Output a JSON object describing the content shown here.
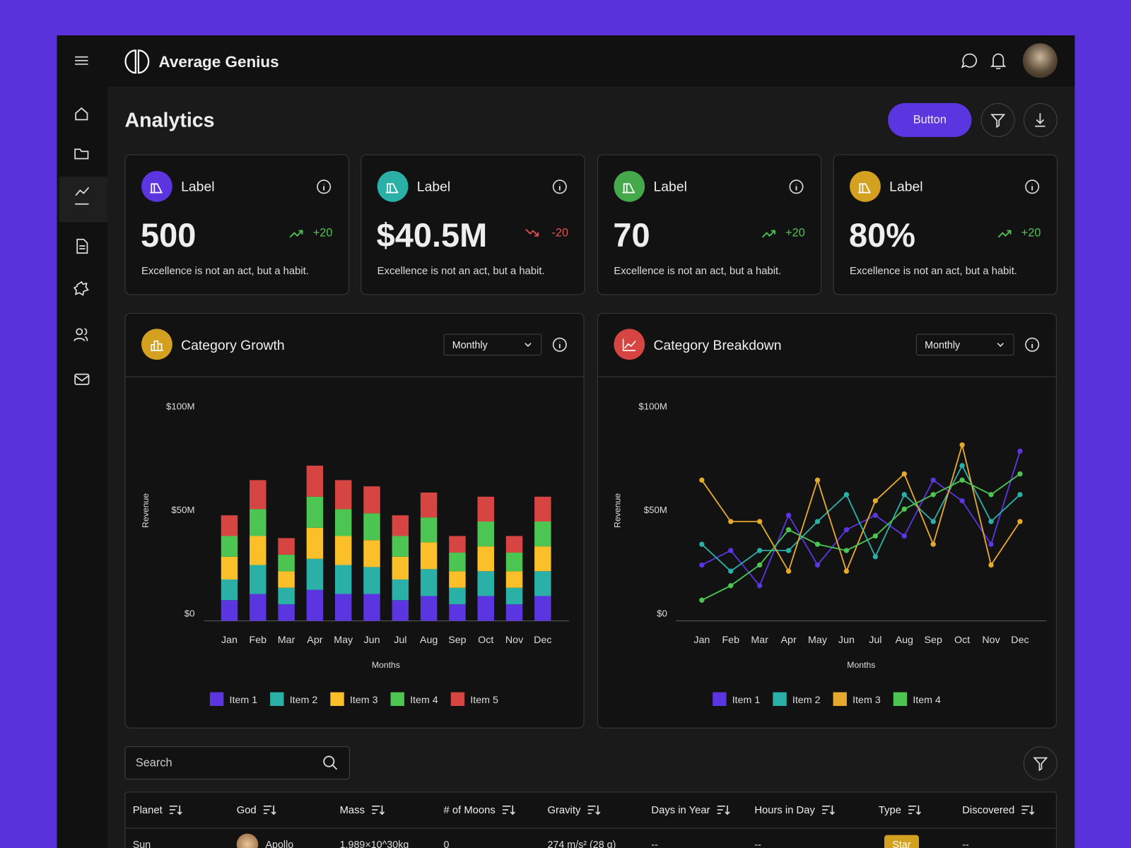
{
  "header": {
    "brand": "Average Genius"
  },
  "page": {
    "title": "Analytics",
    "button": "Button"
  },
  "cards": [
    {
      "label": "Label",
      "value": "500",
      "delta": "+20",
      "trend": "up",
      "color": "#5b35e0",
      "note": "Excellence is not an act, but a habit."
    },
    {
      "label": "Label",
      "value": "$40.5M",
      "delta": "-20",
      "trend": "down",
      "color": "#2bb0a8",
      "note": "Excellence is not an act, but a habit."
    },
    {
      "label": "Label",
      "value": "70",
      "delta": "+20",
      "trend": "up",
      "color": "#45a84a",
      "note": "Excellence is not an act, but a habit."
    },
    {
      "label": "Label",
      "value": "80%",
      "delta": "+20",
      "trend": "up",
      "color": "#d4a020",
      "note": "Excellence is not an act, but a habit."
    }
  ],
  "chart_data": [
    {
      "type": "bar",
      "stacked": true,
      "title": "Category Growth",
      "period": "Monthly",
      "icon_color": "#d4a020",
      "y_label": "Revenue",
      "x_label": "Months",
      "grid": false,
      "legend": "bottom",
      "categories": [
        "Jan",
        "Feb",
        "Mar",
        "Apr",
        "May",
        "Jun",
        "Jul",
        "Aug",
        "Sep",
        "Oct",
        "Nov",
        "Dec"
      ],
      "ylim": [
        0,
        100000000
      ],
      "yticks": [
        {
          "value": 0,
          "label": "$0"
        },
        {
          "value": 50000000,
          "label": "$50M"
        },
        {
          "value": 100000000,
          "label": "$100M"
        }
      ],
      "series": [
        {
          "name": "Item 1",
          "color": "#5b35e0",
          "values": [
            10000000,
            13000000,
            8000000,
            15000000,
            13000000,
            13000000,
            10000000,
            12000000,
            8000000,
            12000000,
            8000000,
            12000000
          ]
        },
        {
          "name": "Item 2",
          "color": "#2bb0a8",
          "values": [
            10000000,
            14000000,
            8000000,
            15000000,
            14000000,
            13000000,
            10000000,
            13000000,
            8000000,
            12000000,
            8000000,
            12000000
          ]
        },
        {
          "name": "Item 3",
          "color": "#fbbf2a",
          "values": [
            11000000,
            14000000,
            8000000,
            15000000,
            14000000,
            13000000,
            11000000,
            13000000,
            8000000,
            12000000,
            8000000,
            12000000
          ]
        },
        {
          "name": "Item 4",
          "color": "#4cc552",
          "values": [
            10000000,
            13000000,
            8000000,
            15000000,
            13000000,
            13000000,
            10000000,
            12000000,
            9000000,
            12000000,
            9000000,
            12000000
          ]
        },
        {
          "name": "Item 5",
          "color": "#d64541",
          "values": [
            10000000,
            14000000,
            8000000,
            15000000,
            14000000,
            13000000,
            10000000,
            12000000,
            8000000,
            12000000,
            8000000,
            12000000
          ]
        }
      ]
    },
    {
      "type": "line",
      "title": "Category Breakdown",
      "period": "Monthly",
      "icon_color": "#d64541",
      "y_label": "Revenue",
      "x_label": "Months",
      "grid": false,
      "legend": "bottom",
      "categories": [
        "Jan",
        "Feb",
        "Mar",
        "Apr",
        "May",
        "Jun",
        "Jul",
        "Aug",
        "Sep",
        "Oct",
        "Nov",
        "Dec"
      ],
      "ylim": [
        0,
        100000000
      ],
      "yticks": [
        {
          "value": 0,
          "label": "$0"
        },
        {
          "value": 50000000,
          "label": "$50M"
        },
        {
          "value": 100000000,
          "label": "$100M"
        }
      ],
      "series": [
        {
          "name": "Item 1",
          "color": "#5b35e0",
          "values": [
            27000000,
            34000000,
            17000000,
            51000000,
            27000000,
            44000000,
            51000000,
            41000000,
            68000000,
            58000000,
            37000000,
            82000000
          ]
        },
        {
          "name": "Item 2",
          "color": "#2bb0a8",
          "values": [
            37000000,
            24000000,
            34000000,
            34000000,
            48000000,
            61000000,
            31000000,
            61000000,
            48000000,
            75000000,
            48000000,
            61000000
          ]
        },
        {
          "name": "Item 3",
          "color": "#e6a92c",
          "values": [
            68000000,
            48000000,
            48000000,
            24000000,
            68000000,
            24000000,
            58000000,
            71000000,
            37000000,
            85000000,
            27000000,
            48000000
          ]
        },
        {
          "name": "Item 4",
          "color": "#4cc552",
          "values": [
            10000000,
            17000000,
            27000000,
            44000000,
            37000000,
            34000000,
            41000000,
            54000000,
            61000000,
            68000000,
            61000000,
            71000000
          ]
        }
      ]
    }
  ],
  "search": {
    "placeholder": "Search"
  },
  "table": {
    "columns": [
      "Planet",
      "God",
      "Mass",
      "# of Moons",
      "Gravity",
      "Days in Year",
      "Hours in Day",
      "Type",
      "Discovered"
    ],
    "rows": [
      [
        "Sun",
        "Apollo",
        "1.989×10^30kg",
        "0",
        "274 m/s² (28 g)",
        "--",
        "--",
        "Star",
        "--"
      ]
    ]
  }
}
